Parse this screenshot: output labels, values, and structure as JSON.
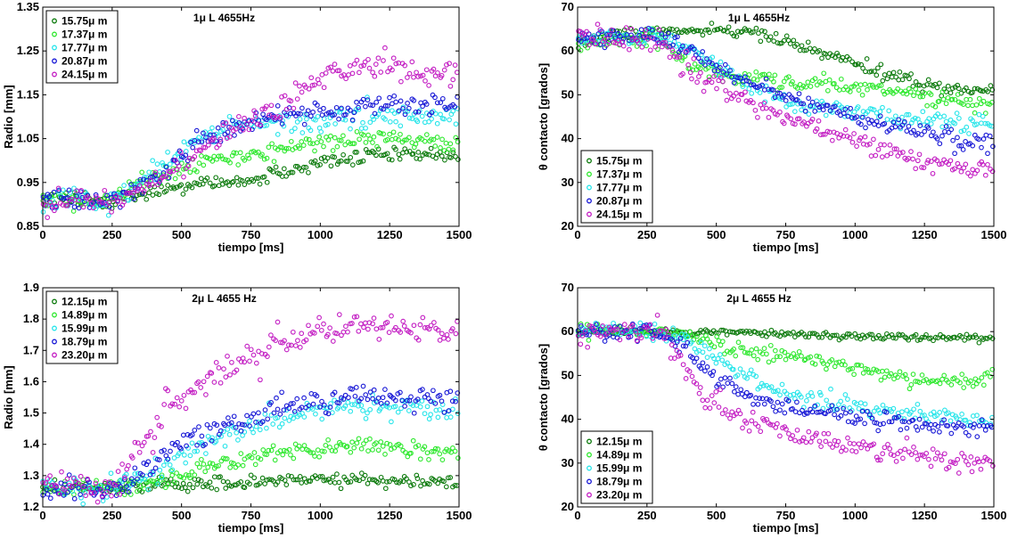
{
  "chart_data": [
    {
      "type": "scatter",
      "title": "1μ L 4655Hz",
      "xlabel": "tiempo [ms]",
      "ylabel": "Radio [mm]",
      "xlim": [
        0,
        1500
      ],
      "ylim": [
        0.85,
        1.35
      ],
      "xticks": [
        "0",
        "250",
        "500",
        "750",
        "1000",
        "1250",
        "1500"
      ],
      "xtick_values": [
        0,
        250,
        500,
        750,
        1000,
        1250,
        1500
      ],
      "yticks": [
        "0.85",
        "0.95",
        "1.05",
        "1.15",
        "1.25",
        "1.35"
      ],
      "ytick_values": [
        0.85,
        0.95,
        1.05,
        1.15,
        1.25,
        1.35
      ],
      "legend_position": "top-left",
      "series": [
        {
          "name": "15.75μ m",
          "color": "#0c7a0c",
          "noise": 0.008,
          "x": [
            0,
            250,
            350,
            500,
            750,
            900,
            1000,
            1100,
            1200,
            1300,
            1400,
            1500
          ],
          "y": [
            0.91,
            0.91,
            0.92,
            0.94,
            0.955,
            0.98,
            0.995,
            1.005,
            1.015,
            1.015,
            1.01,
            1.01
          ]
        },
        {
          "name": "17.37μ m",
          "color": "#2ee82e",
          "noise": 0.01,
          "x": [
            0,
            250,
            350,
            500,
            600,
            750,
            900,
            1000,
            1100,
            1250,
            1400,
            1500
          ],
          "y": [
            0.91,
            0.91,
            0.96,
            0.98,
            1.0,
            1.01,
            1.03,
            1.045,
            1.05,
            1.055,
            1.045,
            1.04
          ]
        },
        {
          "name": "17.77μ m",
          "color": "#27e5ea",
          "noise": 0.012,
          "x": [
            0,
            250,
            350,
            450,
            550,
            700,
            850,
            1000,
            1150,
            1300,
            1500
          ],
          "y": [
            0.91,
            0.91,
            0.95,
            1.0,
            1.05,
            1.08,
            1.09,
            1.095,
            1.1,
            1.1,
            1.1
          ]
        },
        {
          "name": "20.87μ m",
          "color": "#1818d6",
          "noise": 0.012,
          "x": [
            0,
            250,
            350,
            450,
            550,
            700,
            850,
            1000,
            1150,
            1300,
            1500
          ],
          "y": [
            0.91,
            0.91,
            0.94,
            0.98,
            1.04,
            1.08,
            1.1,
            1.11,
            1.12,
            1.125,
            1.125
          ]
        },
        {
          "name": "24.15μ m",
          "color": "#c31ec3",
          "noise": 0.014,
          "x": [
            0,
            250,
            350,
            450,
            550,
            650,
            750,
            850,
            950,
            1050,
            1150,
            1250,
            1350,
            1500
          ],
          "y": [
            0.91,
            0.91,
            0.93,
            0.97,
            1.02,
            1.06,
            1.09,
            1.12,
            1.17,
            1.2,
            1.22,
            1.22,
            1.2,
            1.2
          ]
        }
      ]
    },
    {
      "type": "scatter",
      "title": "1μ L 4655Hz",
      "xlabel": "tiempo [ms]",
      "ylabel": "θ contacto [grados]",
      "xlim": [
        0,
        1500
      ],
      "ylim": [
        20,
        70
      ],
      "xticks": [
        "0",
        "250",
        "500",
        "750",
        "1000",
        "1250",
        "1500"
      ],
      "xtick_values": [
        0,
        250,
        500,
        750,
        1000,
        1250,
        1500
      ],
      "yticks": [
        "20",
        "30",
        "40",
        "50",
        "60",
        "70"
      ],
      "ytick_values": [
        20,
        30,
        40,
        50,
        60,
        70
      ],
      "legend_position": "bottom-left",
      "series": [
        {
          "name": "15.75μ m",
          "color": "#0c7a0c",
          "noise": 0.8,
          "x": [
            0,
            100,
            200,
            300,
            400,
            500,
            600,
            700,
            800,
            900,
            1000,
            1100,
            1200,
            1300,
            1400,
            1500
          ],
          "y": [
            62,
            63,
            64,
            64.5,
            64.5,
            64.5,
            64.5,
            63.5,
            61.5,
            59,
            57,
            55,
            53,
            51.5,
            51,
            51
          ]
        },
        {
          "name": "17.37μ m",
          "color": "#2ee82e",
          "noise": 0.9,
          "x": [
            0,
            100,
            200,
            300,
            400,
            500,
            600,
            700,
            800,
            900,
            1000,
            1100,
            1200,
            1300,
            1400,
            1500
          ],
          "y": [
            61.5,
            62.5,
            63,
            63,
            57,
            55,
            54,
            53.5,
            53,
            52.5,
            52,
            51.5,
            50.5,
            49,
            48.5,
            48
          ]
        },
        {
          "name": "17.77μ m",
          "color": "#27e5ea",
          "noise": 1.0,
          "x": [
            0,
            100,
            200,
            300,
            400,
            500,
            600,
            700,
            800,
            900,
            1000,
            1100,
            1200,
            1300,
            1400,
            1500
          ],
          "y": [
            63,
            63,
            63.5,
            63,
            61,
            57,
            53,
            50,
            48,
            47,
            46,
            45,
            44.5,
            44,
            43.5,
            43
          ]
        },
        {
          "name": "20.87μ m",
          "color": "#1818d6",
          "noise": 1.0,
          "x": [
            0,
            100,
            200,
            300,
            400,
            500,
            600,
            700,
            800,
            900,
            1000,
            1100,
            1200,
            1300,
            1400,
            1500
          ],
          "y": [
            63,
            63,
            63.5,
            63,
            60,
            56,
            53,
            51,
            49,
            47,
            45,
            43.5,
            42,
            40.5,
            39.5,
            39
          ]
        },
        {
          "name": "24.15μ m",
          "color": "#c31ec3",
          "noise": 1.3,
          "x": [
            0,
            100,
            200,
            300,
            400,
            500,
            600,
            700,
            800,
            900,
            1000,
            1100,
            1200,
            1300,
            1400,
            1500
          ],
          "y": [
            63,
            63,
            63.5,
            62,
            56,
            52,
            49,
            46,
            44,
            42,
            40,
            38,
            35,
            33.5,
            33.5,
            33.5
          ]
        }
      ]
    },
    {
      "type": "scatter",
      "title": "2μ L 4655 Hz",
      "xlabel": "tiempo [ms]",
      "ylabel": "Radio [mm]",
      "xlim": [
        0,
        1500
      ],
      "ylim": [
        1.2,
        1.9
      ],
      "xticks": [
        "0",
        "250",
        "500",
        "750",
        "1000",
        "1250",
        "1500"
      ],
      "xtick_values": [
        0,
        250,
        500,
        750,
        1000,
        1250,
        1500
      ],
      "yticks": [
        "1.2",
        "1.3",
        "1.4",
        "1.5",
        "1.6",
        "1.7",
        "1.8",
        "1.9"
      ],
      "ytick_values": [
        1.2,
        1.3,
        1.4,
        1.5,
        1.6,
        1.7,
        1.8,
        1.9
      ],
      "legend_position": "top-left",
      "series": [
        {
          "name": "12.15μ m",
          "color": "#0c7a0c",
          "noise": 0.01,
          "x": [
            0,
            250,
            350,
            500,
            750,
            1000,
            1250,
            1500
          ],
          "y": [
            1.26,
            1.26,
            1.265,
            1.27,
            1.28,
            1.29,
            1.285,
            1.275
          ]
        },
        {
          "name": "14.89μ m",
          "color": "#2ee82e",
          "noise": 0.015,
          "x": [
            0,
            250,
            400,
            500,
            600,
            750,
            900,
            1000,
            1150,
            1250,
            1350,
            1500
          ],
          "y": [
            1.26,
            1.26,
            1.27,
            1.3,
            1.33,
            1.36,
            1.38,
            1.38,
            1.4,
            1.39,
            1.375,
            1.375
          ]
        },
        {
          "name": "15.99μ m",
          "color": "#27e5ea",
          "noise": 0.018,
          "x": [
            0,
            250,
            350,
            450,
            550,
            650,
            750,
            900,
            1000,
            1100,
            1250,
            1400,
            1500
          ],
          "y": [
            1.26,
            1.26,
            1.28,
            1.33,
            1.38,
            1.42,
            1.46,
            1.49,
            1.51,
            1.52,
            1.52,
            1.52,
            1.51
          ]
        },
        {
          "name": "18.79μ m",
          "color": "#1818d6",
          "noise": 0.018,
          "x": [
            0,
            250,
            350,
            450,
            550,
            650,
            750,
            850,
            950,
            1050,
            1150,
            1250,
            1400,
            1500
          ],
          "y": [
            1.26,
            1.26,
            1.3,
            1.38,
            1.42,
            1.45,
            1.48,
            1.52,
            1.53,
            1.55,
            1.56,
            1.55,
            1.55,
            1.55
          ]
        },
        {
          "name": "23.20μ m",
          "color": "#c31ec3",
          "noise": 0.022,
          "x": [
            0,
            250,
            300,
            350,
            400,
            450,
            550,
            650,
            750,
            850,
            950,
            1050,
            1150,
            1250,
            1400,
            1500
          ],
          "y": [
            1.26,
            1.26,
            1.32,
            1.4,
            1.46,
            1.53,
            1.58,
            1.63,
            1.68,
            1.72,
            1.75,
            1.76,
            1.78,
            1.77,
            1.76,
            1.75
          ]
        }
      ]
    },
    {
      "type": "scatter",
      "title": "2μ L 4655 Hz",
      "xlabel": "tiempo [ms]",
      "ylabel": "θ contacto [grados]",
      "xlim": [
        0,
        1500
      ],
      "ylim": [
        20,
        70
      ],
      "xticks": [
        "0",
        "250",
        "500",
        "750",
        "1000",
        "1250",
        "1500"
      ],
      "xtick_values": [
        0,
        250,
        500,
        750,
        1000,
        1250,
        1500
      ],
      "yticks": [
        "20",
        "30",
        "40",
        "50",
        "60",
        "70"
      ],
      "ytick_values": [
        20,
        30,
        40,
        50,
        60,
        70
      ],
      "legend_position": "bottom-left",
      "series": [
        {
          "name": "12.15μ m",
          "color": "#0c7a0c",
          "noise": 0.4,
          "x": [
            0,
            300,
            500,
            750,
            1000,
            1250,
            1500
          ],
          "y": [
            60,
            60,
            60,
            59.5,
            59,
            58.8,
            58.5
          ]
        },
        {
          "name": "14.89μ m",
          "color": "#2ee82e",
          "noise": 0.8,
          "x": [
            0,
            300,
            400,
            500,
            600,
            750,
            900,
            1000,
            1100,
            1200,
            1300,
            1400,
            1500
          ],
          "y": [
            60,
            60,
            59,
            57,
            55.5,
            54.5,
            53,
            52,
            50.5,
            49,
            48.5,
            49,
            49.5
          ]
        },
        {
          "name": "15.99μ m",
          "color": "#27e5ea",
          "noise": 1.0,
          "x": [
            0,
            300,
            400,
            500,
            600,
            700,
            800,
            900,
            1000,
            1100,
            1250,
            1400,
            1500
          ],
          "y": [
            60,
            60,
            58,
            54,
            50,
            47,
            45,
            44,
            43,
            42,
            41,
            40,
            40
          ]
        },
        {
          "name": "18.79μ m",
          "color": "#1818d6",
          "noise": 1.0,
          "x": [
            0,
            300,
            400,
            450,
            500,
            600,
            700,
            800,
            900,
            1000,
            1100,
            1250,
            1400,
            1500
          ],
          "y": [
            60,
            60,
            56,
            52,
            49,
            45.5,
            43.5,
            42.5,
            41.5,
            40.5,
            40,
            39,
            38,
            38
          ]
        },
        {
          "name": "23.20μ m",
          "color": "#c31ec3",
          "noise": 1.3,
          "x": [
            0,
            300,
            350,
            400,
            450,
            500,
            600,
            700,
            800,
            900,
            1000,
            1100,
            1250,
            1400,
            1500
          ],
          "y": [
            60,
            60,
            55,
            50,
            46,
            43,
            40,
            38,
            36.5,
            35,
            34,
            33,
            31.5,
            30,
            30
          ]
        }
      ]
    }
  ]
}
